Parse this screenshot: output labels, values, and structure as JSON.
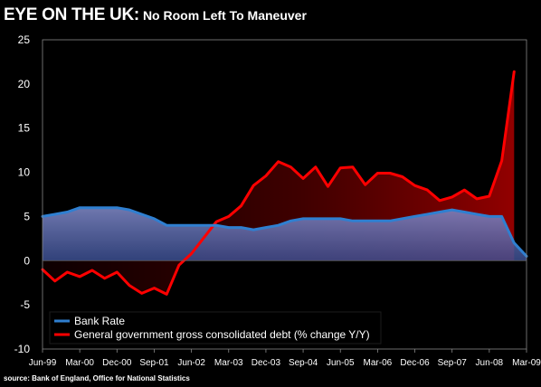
{
  "title": {
    "main": "EYE ON THE UK:",
    "sub": "No Room Left To Maneuver"
  },
  "source": "source: Bank of England, Office for National Statistics",
  "colors": {
    "background": "#000000",
    "bank_rate": "#2f7fd0",
    "debt": "#ff0000"
  },
  "chart_data": {
    "type": "line",
    "ylim": [
      -10,
      25
    ],
    "y_ticks": [
      "25",
      "20",
      "15",
      "10",
      "5",
      "0",
      "-5",
      "-10"
    ],
    "x_ticks": [
      "Jun-99",
      "Mar-00",
      "Dec-00",
      "Sep-01",
      "Jun-02",
      "Mar-03",
      "Dec-03",
      "Sep-04",
      "Jun-05",
      "Mar-06",
      "Dec-06",
      "Sep-07",
      "Jun-08",
      "Mar-09"
    ],
    "legend_placement": "bottom-left",
    "series": [
      {
        "name": "Bank Rate",
        "color": "#2f7fd0",
        "fill": "area",
        "points": [
          [
            "1999-06",
            5.0
          ],
          [
            "1999-09",
            5.25
          ],
          [
            "1999-12",
            5.5
          ],
          [
            "2000-03",
            6.0
          ],
          [
            "2000-06",
            6.0
          ],
          [
            "2000-09",
            6.0
          ],
          [
            "2000-12",
            6.0
          ],
          [
            "2001-03",
            5.75
          ],
          [
            "2001-06",
            5.25
          ],
          [
            "2001-09",
            4.75
          ],
          [
            "2001-12",
            4.0
          ],
          [
            "2002-03",
            4.0
          ],
          [
            "2002-06",
            4.0
          ],
          [
            "2002-09",
            4.0
          ],
          [
            "2002-12",
            4.0
          ],
          [
            "2003-03",
            3.75
          ],
          [
            "2003-06",
            3.75
          ],
          [
            "2003-09",
            3.5
          ],
          [
            "2003-12",
            3.75
          ],
          [
            "2004-03",
            4.0
          ],
          [
            "2004-06",
            4.5
          ],
          [
            "2004-09",
            4.75
          ],
          [
            "2004-12",
            4.75
          ],
          [
            "2005-03",
            4.75
          ],
          [
            "2005-06",
            4.75
          ],
          [
            "2005-09",
            4.5
          ],
          [
            "2005-12",
            4.5
          ],
          [
            "2006-03",
            4.5
          ],
          [
            "2006-06",
            4.5
          ],
          [
            "2006-09",
            4.75
          ],
          [
            "2006-12",
            5.0
          ],
          [
            "2007-03",
            5.25
          ],
          [
            "2007-06",
            5.5
          ],
          [
            "2007-09",
            5.75
          ],
          [
            "2007-12",
            5.5
          ],
          [
            "2008-03",
            5.25
          ],
          [
            "2008-06",
            5.0
          ],
          [
            "2008-09",
            5.0
          ],
          [
            "2008-12",
            2.0
          ],
          [
            "2009-03",
            0.5
          ]
        ]
      },
      {
        "name": "General government gross consolidated debt (% change Y/Y)",
        "color": "#ff0000",
        "fill": "gradient-area",
        "points": [
          [
            "1999-06",
            -1.0
          ],
          [
            "1999-09",
            -2.3
          ],
          [
            "1999-12",
            -1.3
          ],
          [
            "2000-03",
            -1.8
          ],
          [
            "2000-06",
            -1.1
          ],
          [
            "2000-09",
            -2.0
          ],
          [
            "2000-12",
            -1.3
          ],
          [
            "2001-03",
            -2.8
          ],
          [
            "2001-06",
            -3.7
          ],
          [
            "2001-09",
            -3.1
          ],
          [
            "2001-12",
            -3.8
          ],
          [
            "2002-03",
            -0.5
          ],
          [
            "2002-06",
            0.8
          ],
          [
            "2002-09",
            2.6
          ],
          [
            "2002-12",
            4.4
          ],
          [
            "2003-03",
            5.0
          ],
          [
            "2003-06",
            6.2
          ],
          [
            "2003-09",
            8.5
          ],
          [
            "2003-12",
            9.6
          ],
          [
            "2004-03",
            11.2
          ],
          [
            "2004-06",
            10.6
          ],
          [
            "2004-09",
            9.3
          ],
          [
            "2004-12",
            10.6
          ],
          [
            "2005-03",
            8.4
          ],
          [
            "2005-06",
            10.5
          ],
          [
            "2005-09",
            10.6
          ],
          [
            "2005-12",
            8.6
          ],
          [
            "2006-03",
            9.9
          ],
          [
            "2006-06",
            9.9
          ],
          [
            "2006-09",
            9.5
          ],
          [
            "2006-12",
            8.5
          ],
          [
            "2007-03",
            8.0
          ],
          [
            "2007-06",
            6.8
          ],
          [
            "2007-09",
            7.2
          ],
          [
            "2007-12",
            8.0
          ],
          [
            "2008-03",
            7.0
          ],
          [
            "2008-06",
            7.3
          ],
          [
            "2008-09",
            11.3
          ],
          [
            "2008-12",
            21.4
          ]
        ]
      }
    ]
  }
}
